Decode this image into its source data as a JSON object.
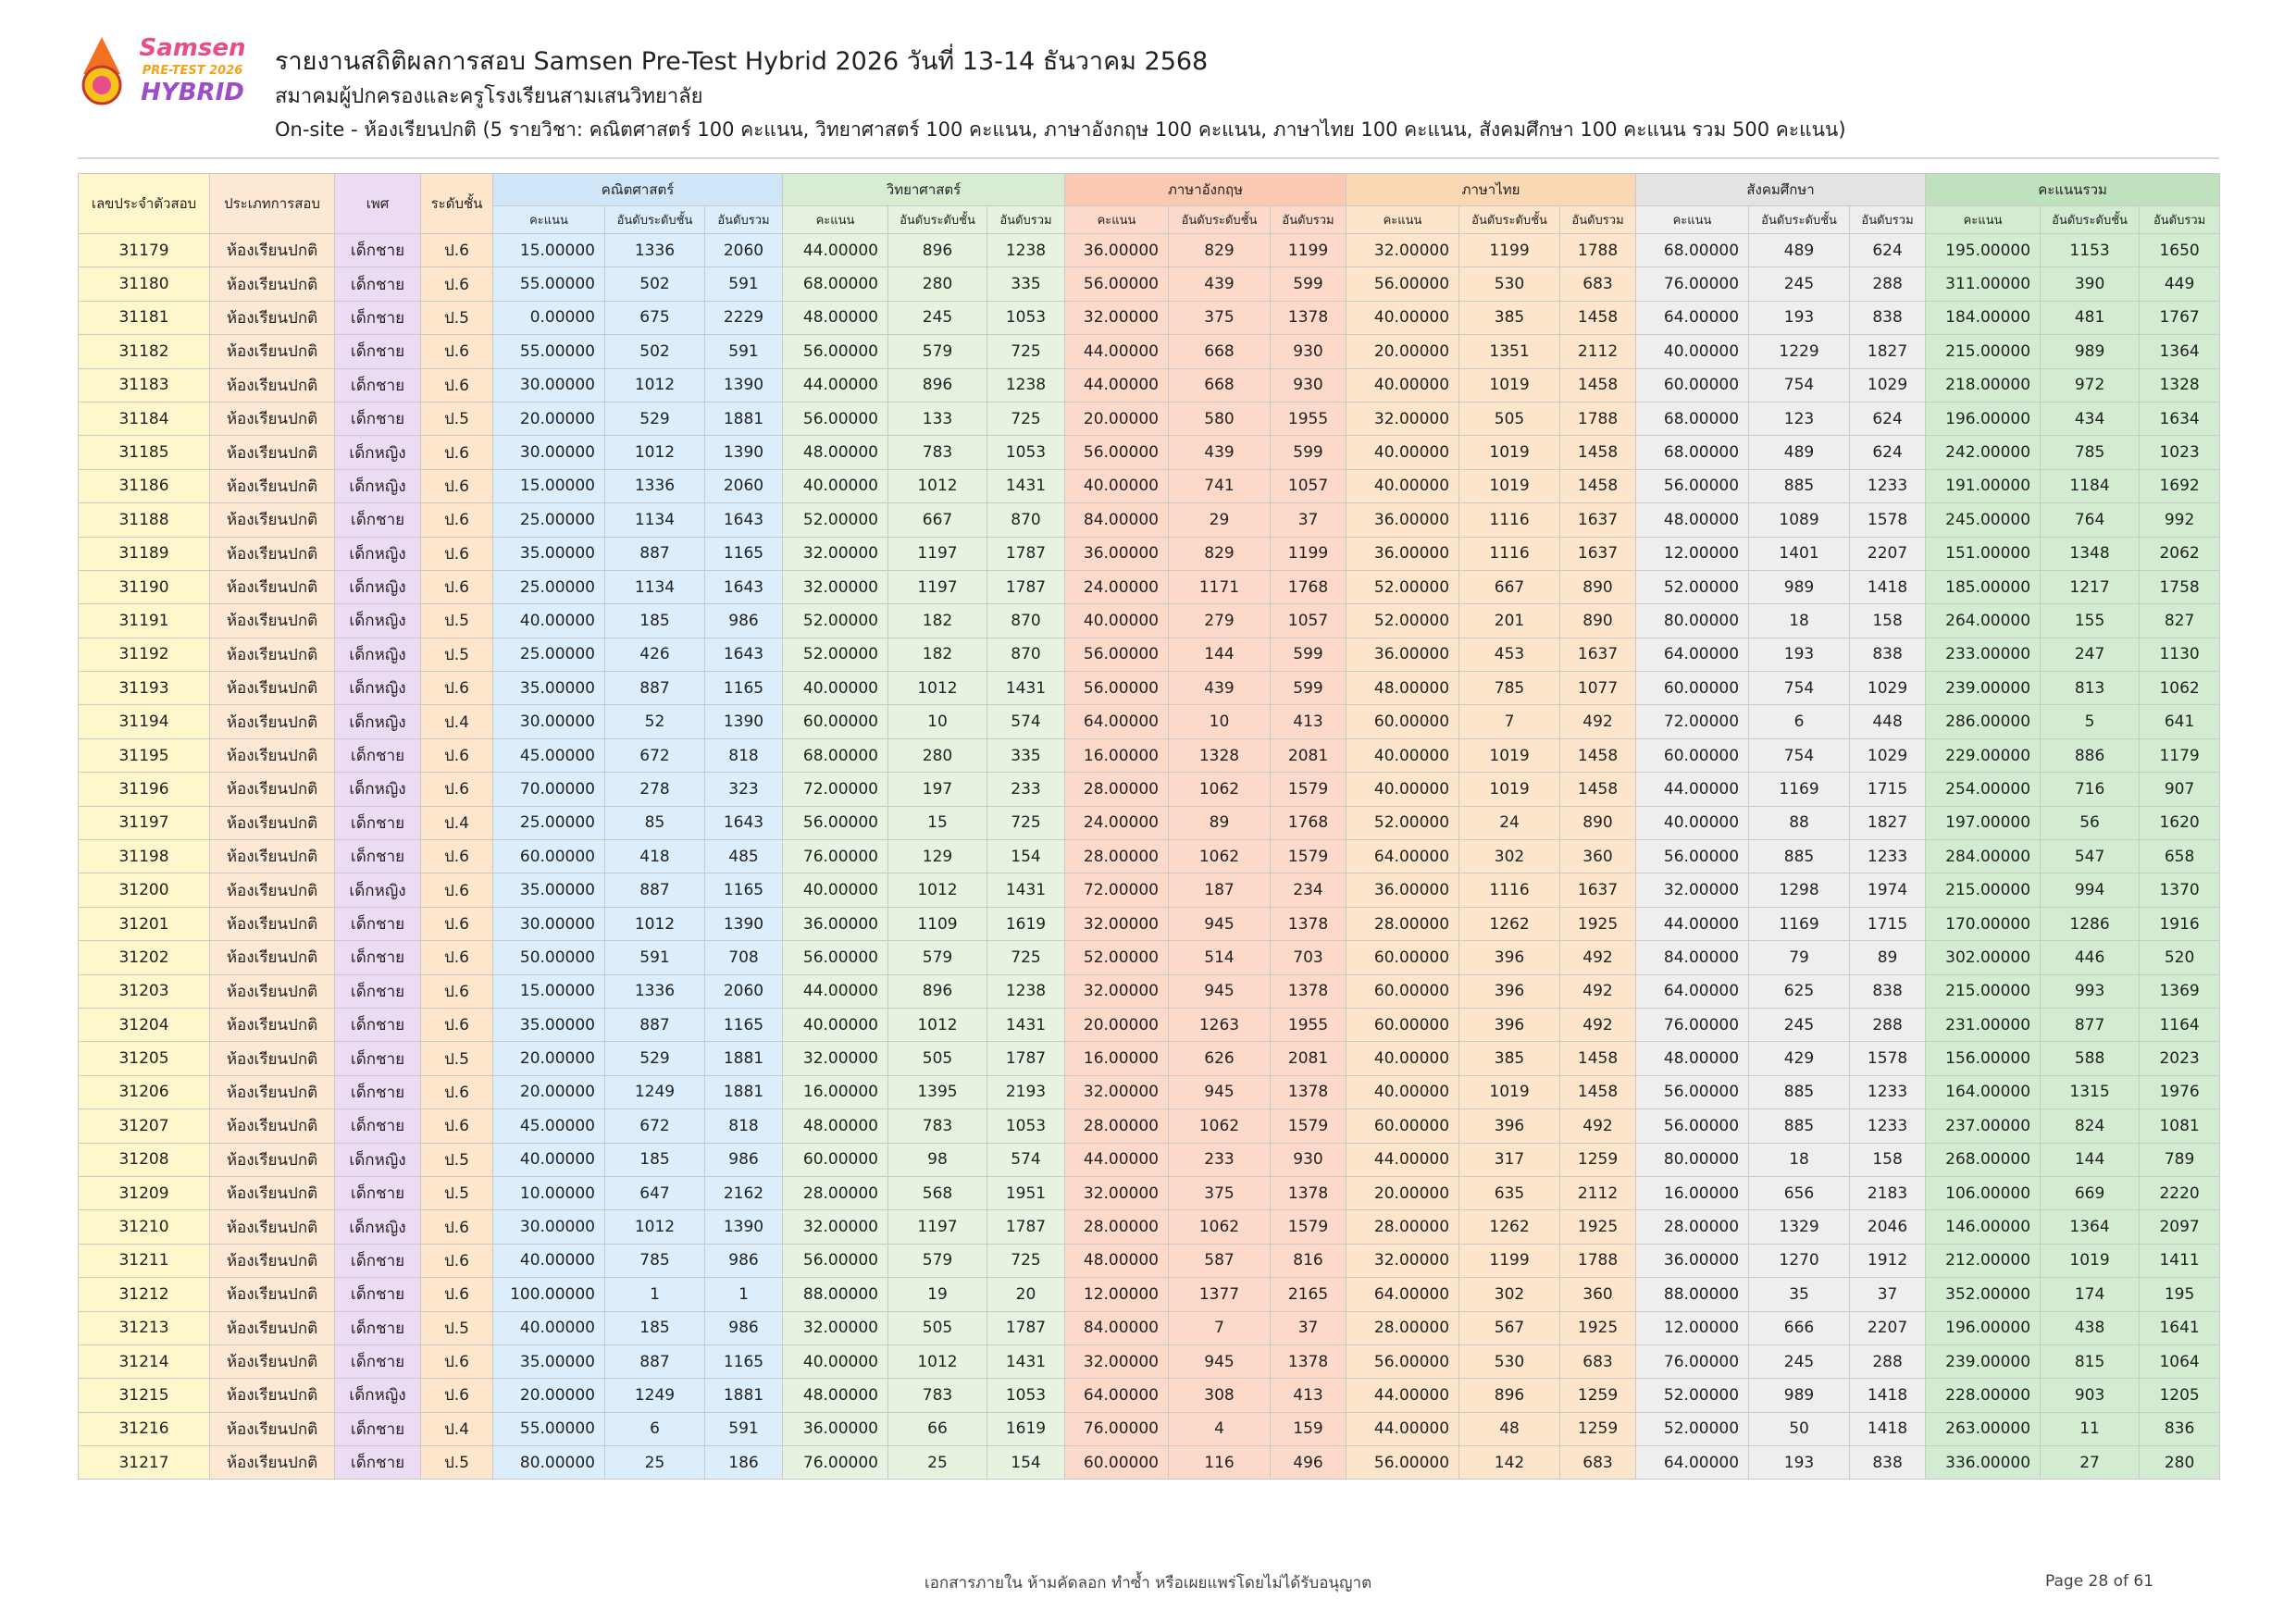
{
  "logo": {
    "line1": "Samsen",
    "line2": "PRE-TEST 2026",
    "line3": "HYBRID"
  },
  "header": {
    "title": "รายงานสถิติผลการสอบ Samsen Pre-Test Hybrid 2026 วันที่ 13-14 ธันวาคม 2568",
    "subtitle": "สมาคมผู้ปกครองและครูโรงเรียนสามเสนวิทยาลัย",
    "description": "On-site - ห้องเรียนปกติ (5 รายวิชา: คณิตศาสตร์ 100 คะแนน, วิทยาศาสตร์ 100 คะแนน, ภาษาอังกฤษ 100 คะแนน, ภาษาไทย 100 คะแนน, สังคมศึกษา 100 คะแนน รวม 500 คะแนน)"
  },
  "table": {
    "fixed_columns": [
      "เลขประจำตัวสอบ",
      "ประเภทการสอบ",
      "เพศ",
      "ระดับชั้น"
    ],
    "groups": [
      {
        "name": "คณิตศาสตร์",
        "sub": [
          "คะแนน",
          "อันดับระดับชั้น",
          "อันดับรวม"
        ]
      },
      {
        "name": "วิทยาศาสตร์",
        "sub": [
          "คะแนน",
          "อันดับระดับชั้น",
          "อันดับรวม"
        ]
      },
      {
        "name": "ภาษาอังกฤษ",
        "sub": [
          "คะแนน",
          "อันดับระดับชั้น",
          "อันดับรวม"
        ]
      },
      {
        "name": "ภาษาไทย",
        "sub": [
          "คะแนน",
          "อันดับระดับชั้น",
          "อันดับรวม"
        ]
      },
      {
        "name": "สังคมศึกษา",
        "sub": [
          "คะแนน",
          "อันดับระดับชั้น",
          "อันดับรวม"
        ]
      },
      {
        "name": "คะแนนรวม",
        "sub": [
          "คะแนน",
          "อันดับระดับชั้น",
          "อันดับรวม"
        ]
      }
    ],
    "rows": [
      [
        "31179",
        "ห้องเรียนปกติ",
        "เด็กชาย",
        "ป.6",
        "15.00000",
        "1336",
        "2060",
        "44.00000",
        "896",
        "1238",
        "36.00000",
        "829",
        "1199",
        "32.00000",
        "1199",
        "1788",
        "68.00000",
        "489",
        "624",
        "195.00000",
        "1153",
        "1650"
      ],
      [
        "31180",
        "ห้องเรียนปกติ",
        "เด็กชาย",
        "ป.6",
        "55.00000",
        "502",
        "591",
        "68.00000",
        "280",
        "335",
        "56.00000",
        "439",
        "599",
        "56.00000",
        "530",
        "683",
        "76.00000",
        "245",
        "288",
        "311.00000",
        "390",
        "449"
      ],
      [
        "31181",
        "ห้องเรียนปกติ",
        "เด็กชาย",
        "ป.5",
        "0.00000",
        "675",
        "2229",
        "48.00000",
        "245",
        "1053",
        "32.00000",
        "375",
        "1378",
        "40.00000",
        "385",
        "1458",
        "64.00000",
        "193",
        "838",
        "184.00000",
        "481",
        "1767"
      ],
      [
        "31182",
        "ห้องเรียนปกติ",
        "เด็กชาย",
        "ป.6",
        "55.00000",
        "502",
        "591",
        "56.00000",
        "579",
        "725",
        "44.00000",
        "668",
        "930",
        "20.00000",
        "1351",
        "2112",
        "40.00000",
        "1229",
        "1827",
        "215.00000",
        "989",
        "1364"
      ],
      [
        "31183",
        "ห้องเรียนปกติ",
        "เด็กชาย",
        "ป.6",
        "30.00000",
        "1012",
        "1390",
        "44.00000",
        "896",
        "1238",
        "44.00000",
        "668",
        "930",
        "40.00000",
        "1019",
        "1458",
        "60.00000",
        "754",
        "1029",
        "218.00000",
        "972",
        "1328"
      ],
      [
        "31184",
        "ห้องเรียนปกติ",
        "เด็กชาย",
        "ป.5",
        "20.00000",
        "529",
        "1881",
        "56.00000",
        "133",
        "725",
        "20.00000",
        "580",
        "1955",
        "32.00000",
        "505",
        "1788",
        "68.00000",
        "123",
        "624",
        "196.00000",
        "434",
        "1634"
      ],
      [
        "31185",
        "ห้องเรียนปกติ",
        "เด็กหญิง",
        "ป.6",
        "30.00000",
        "1012",
        "1390",
        "48.00000",
        "783",
        "1053",
        "56.00000",
        "439",
        "599",
        "40.00000",
        "1019",
        "1458",
        "68.00000",
        "489",
        "624",
        "242.00000",
        "785",
        "1023"
      ],
      [
        "31186",
        "ห้องเรียนปกติ",
        "เด็กหญิง",
        "ป.6",
        "15.00000",
        "1336",
        "2060",
        "40.00000",
        "1012",
        "1431",
        "40.00000",
        "741",
        "1057",
        "40.00000",
        "1019",
        "1458",
        "56.00000",
        "885",
        "1233",
        "191.00000",
        "1184",
        "1692"
      ],
      [
        "31188",
        "ห้องเรียนปกติ",
        "เด็กชาย",
        "ป.6",
        "25.00000",
        "1134",
        "1643",
        "52.00000",
        "667",
        "870",
        "84.00000",
        "29",
        "37",
        "36.00000",
        "1116",
        "1637",
        "48.00000",
        "1089",
        "1578",
        "245.00000",
        "764",
        "992"
      ],
      [
        "31189",
        "ห้องเรียนปกติ",
        "เด็กหญิง",
        "ป.6",
        "35.00000",
        "887",
        "1165",
        "32.00000",
        "1197",
        "1787",
        "36.00000",
        "829",
        "1199",
        "36.00000",
        "1116",
        "1637",
        "12.00000",
        "1401",
        "2207",
        "151.00000",
        "1348",
        "2062"
      ],
      [
        "31190",
        "ห้องเรียนปกติ",
        "เด็กหญิง",
        "ป.6",
        "25.00000",
        "1134",
        "1643",
        "32.00000",
        "1197",
        "1787",
        "24.00000",
        "1171",
        "1768",
        "52.00000",
        "667",
        "890",
        "52.00000",
        "989",
        "1418",
        "185.00000",
        "1217",
        "1758"
      ],
      [
        "31191",
        "ห้องเรียนปกติ",
        "เด็กหญิง",
        "ป.5",
        "40.00000",
        "185",
        "986",
        "52.00000",
        "182",
        "870",
        "40.00000",
        "279",
        "1057",
        "52.00000",
        "201",
        "890",
        "80.00000",
        "18",
        "158",
        "264.00000",
        "155",
        "827"
      ],
      [
        "31192",
        "ห้องเรียนปกติ",
        "เด็กหญิง",
        "ป.5",
        "25.00000",
        "426",
        "1643",
        "52.00000",
        "182",
        "870",
        "56.00000",
        "144",
        "599",
        "36.00000",
        "453",
        "1637",
        "64.00000",
        "193",
        "838",
        "233.00000",
        "247",
        "1130"
      ],
      [
        "31193",
        "ห้องเรียนปกติ",
        "เด็กหญิง",
        "ป.6",
        "35.00000",
        "887",
        "1165",
        "40.00000",
        "1012",
        "1431",
        "56.00000",
        "439",
        "599",
        "48.00000",
        "785",
        "1077",
        "60.00000",
        "754",
        "1029",
        "239.00000",
        "813",
        "1062"
      ],
      [
        "31194",
        "ห้องเรียนปกติ",
        "เด็กหญิง",
        "ป.4",
        "30.00000",
        "52",
        "1390",
        "60.00000",
        "10",
        "574",
        "64.00000",
        "10",
        "413",
        "60.00000",
        "7",
        "492",
        "72.00000",
        "6",
        "448",
        "286.00000",
        "5",
        "641"
      ],
      [
        "31195",
        "ห้องเรียนปกติ",
        "เด็กชาย",
        "ป.6",
        "45.00000",
        "672",
        "818",
        "68.00000",
        "280",
        "335",
        "16.00000",
        "1328",
        "2081",
        "40.00000",
        "1019",
        "1458",
        "60.00000",
        "754",
        "1029",
        "229.00000",
        "886",
        "1179"
      ],
      [
        "31196",
        "ห้องเรียนปกติ",
        "เด็กหญิง",
        "ป.6",
        "70.00000",
        "278",
        "323",
        "72.00000",
        "197",
        "233",
        "28.00000",
        "1062",
        "1579",
        "40.00000",
        "1019",
        "1458",
        "44.00000",
        "1169",
        "1715",
        "254.00000",
        "716",
        "907"
      ],
      [
        "31197",
        "ห้องเรียนปกติ",
        "เด็กชาย",
        "ป.4",
        "25.00000",
        "85",
        "1643",
        "56.00000",
        "15",
        "725",
        "24.00000",
        "89",
        "1768",
        "52.00000",
        "24",
        "890",
        "40.00000",
        "88",
        "1827",
        "197.00000",
        "56",
        "1620"
      ],
      [
        "31198",
        "ห้องเรียนปกติ",
        "เด็กชาย",
        "ป.6",
        "60.00000",
        "418",
        "485",
        "76.00000",
        "129",
        "154",
        "28.00000",
        "1062",
        "1579",
        "64.00000",
        "302",
        "360",
        "56.00000",
        "885",
        "1233",
        "284.00000",
        "547",
        "658"
      ],
      [
        "31200",
        "ห้องเรียนปกติ",
        "เด็กหญิง",
        "ป.6",
        "35.00000",
        "887",
        "1165",
        "40.00000",
        "1012",
        "1431",
        "72.00000",
        "187",
        "234",
        "36.00000",
        "1116",
        "1637",
        "32.00000",
        "1298",
        "1974",
        "215.00000",
        "994",
        "1370"
      ],
      [
        "31201",
        "ห้องเรียนปกติ",
        "เด็กชาย",
        "ป.6",
        "30.00000",
        "1012",
        "1390",
        "36.00000",
        "1109",
        "1619",
        "32.00000",
        "945",
        "1378",
        "28.00000",
        "1262",
        "1925",
        "44.00000",
        "1169",
        "1715",
        "170.00000",
        "1286",
        "1916"
      ],
      [
        "31202",
        "ห้องเรียนปกติ",
        "เด็กชาย",
        "ป.6",
        "50.00000",
        "591",
        "708",
        "56.00000",
        "579",
        "725",
        "52.00000",
        "514",
        "703",
        "60.00000",
        "396",
        "492",
        "84.00000",
        "79",
        "89",
        "302.00000",
        "446",
        "520"
      ],
      [
        "31203",
        "ห้องเรียนปกติ",
        "เด็กชาย",
        "ป.6",
        "15.00000",
        "1336",
        "2060",
        "44.00000",
        "896",
        "1238",
        "32.00000",
        "945",
        "1378",
        "60.00000",
        "396",
        "492",
        "64.00000",
        "625",
        "838",
        "215.00000",
        "993",
        "1369"
      ],
      [
        "31204",
        "ห้องเรียนปกติ",
        "เด็กชาย",
        "ป.6",
        "35.00000",
        "887",
        "1165",
        "40.00000",
        "1012",
        "1431",
        "20.00000",
        "1263",
        "1955",
        "60.00000",
        "396",
        "492",
        "76.00000",
        "245",
        "288",
        "231.00000",
        "877",
        "1164"
      ],
      [
        "31205",
        "ห้องเรียนปกติ",
        "เด็กชาย",
        "ป.5",
        "20.00000",
        "529",
        "1881",
        "32.00000",
        "505",
        "1787",
        "16.00000",
        "626",
        "2081",
        "40.00000",
        "385",
        "1458",
        "48.00000",
        "429",
        "1578",
        "156.00000",
        "588",
        "2023"
      ],
      [
        "31206",
        "ห้องเรียนปกติ",
        "เด็กชาย",
        "ป.6",
        "20.00000",
        "1249",
        "1881",
        "16.00000",
        "1395",
        "2193",
        "32.00000",
        "945",
        "1378",
        "40.00000",
        "1019",
        "1458",
        "56.00000",
        "885",
        "1233",
        "164.00000",
        "1315",
        "1976"
      ],
      [
        "31207",
        "ห้องเรียนปกติ",
        "เด็กชาย",
        "ป.6",
        "45.00000",
        "672",
        "818",
        "48.00000",
        "783",
        "1053",
        "28.00000",
        "1062",
        "1579",
        "60.00000",
        "396",
        "492",
        "56.00000",
        "885",
        "1233",
        "237.00000",
        "824",
        "1081"
      ],
      [
        "31208",
        "ห้องเรียนปกติ",
        "เด็กหญิง",
        "ป.5",
        "40.00000",
        "185",
        "986",
        "60.00000",
        "98",
        "574",
        "44.00000",
        "233",
        "930",
        "44.00000",
        "317",
        "1259",
        "80.00000",
        "18",
        "158",
        "268.00000",
        "144",
        "789"
      ],
      [
        "31209",
        "ห้องเรียนปกติ",
        "เด็กชาย",
        "ป.5",
        "10.00000",
        "647",
        "2162",
        "28.00000",
        "568",
        "1951",
        "32.00000",
        "375",
        "1378",
        "20.00000",
        "635",
        "2112",
        "16.00000",
        "656",
        "2183",
        "106.00000",
        "669",
        "2220"
      ],
      [
        "31210",
        "ห้องเรียนปกติ",
        "เด็กหญิง",
        "ป.6",
        "30.00000",
        "1012",
        "1390",
        "32.00000",
        "1197",
        "1787",
        "28.00000",
        "1062",
        "1579",
        "28.00000",
        "1262",
        "1925",
        "28.00000",
        "1329",
        "2046",
        "146.00000",
        "1364",
        "2097"
      ],
      [
        "31211",
        "ห้องเรียนปกติ",
        "เด็กชาย",
        "ป.6",
        "40.00000",
        "785",
        "986",
        "56.00000",
        "579",
        "725",
        "48.00000",
        "587",
        "816",
        "32.00000",
        "1199",
        "1788",
        "36.00000",
        "1270",
        "1912",
        "212.00000",
        "1019",
        "1411"
      ],
      [
        "31212",
        "ห้องเรียนปกติ",
        "เด็กชาย",
        "ป.6",
        "100.00000",
        "1",
        "1",
        "88.00000",
        "19",
        "20",
        "12.00000",
        "1377",
        "2165",
        "64.00000",
        "302",
        "360",
        "88.00000",
        "35",
        "37",
        "352.00000",
        "174",
        "195"
      ],
      [
        "31213",
        "ห้องเรียนปกติ",
        "เด็กชาย",
        "ป.5",
        "40.00000",
        "185",
        "986",
        "32.00000",
        "505",
        "1787",
        "84.00000",
        "7",
        "37",
        "28.00000",
        "567",
        "1925",
        "12.00000",
        "666",
        "2207",
        "196.00000",
        "438",
        "1641"
      ],
      [
        "31214",
        "ห้องเรียนปกติ",
        "เด็กชาย",
        "ป.6",
        "35.00000",
        "887",
        "1165",
        "40.00000",
        "1012",
        "1431",
        "32.00000",
        "945",
        "1378",
        "56.00000",
        "530",
        "683",
        "76.00000",
        "245",
        "288",
        "239.00000",
        "815",
        "1064"
      ],
      [
        "31215",
        "ห้องเรียนปกติ",
        "เด็กหญิง",
        "ป.6",
        "20.00000",
        "1249",
        "1881",
        "48.00000",
        "783",
        "1053",
        "64.00000",
        "308",
        "413",
        "44.00000",
        "896",
        "1259",
        "52.00000",
        "989",
        "1418",
        "228.00000",
        "903",
        "1205"
      ],
      [
        "31216",
        "ห้องเรียนปกติ",
        "เด็กชาย",
        "ป.4",
        "55.00000",
        "6",
        "591",
        "36.00000",
        "66",
        "1619",
        "76.00000",
        "4",
        "159",
        "44.00000",
        "48",
        "1259",
        "52.00000",
        "50",
        "1418",
        "263.00000",
        "11",
        "836"
      ],
      [
        "31217",
        "ห้องเรียนปกติ",
        "เด็กชาย",
        "ป.5",
        "80.00000",
        "25",
        "186",
        "76.00000",
        "25",
        "154",
        "60.00000",
        "116",
        "496",
        "56.00000",
        "142",
        "683",
        "64.00000",
        "193",
        "838",
        "336.00000",
        "27",
        "280"
      ]
    ]
  },
  "footer": {
    "note": "เอกสารภายใน ห้ามคัดลอก ทำซ้ำ หรือเผยแพร่โดยไม่ได้รับอนุญาต",
    "page": "Page 28 of 61"
  }
}
